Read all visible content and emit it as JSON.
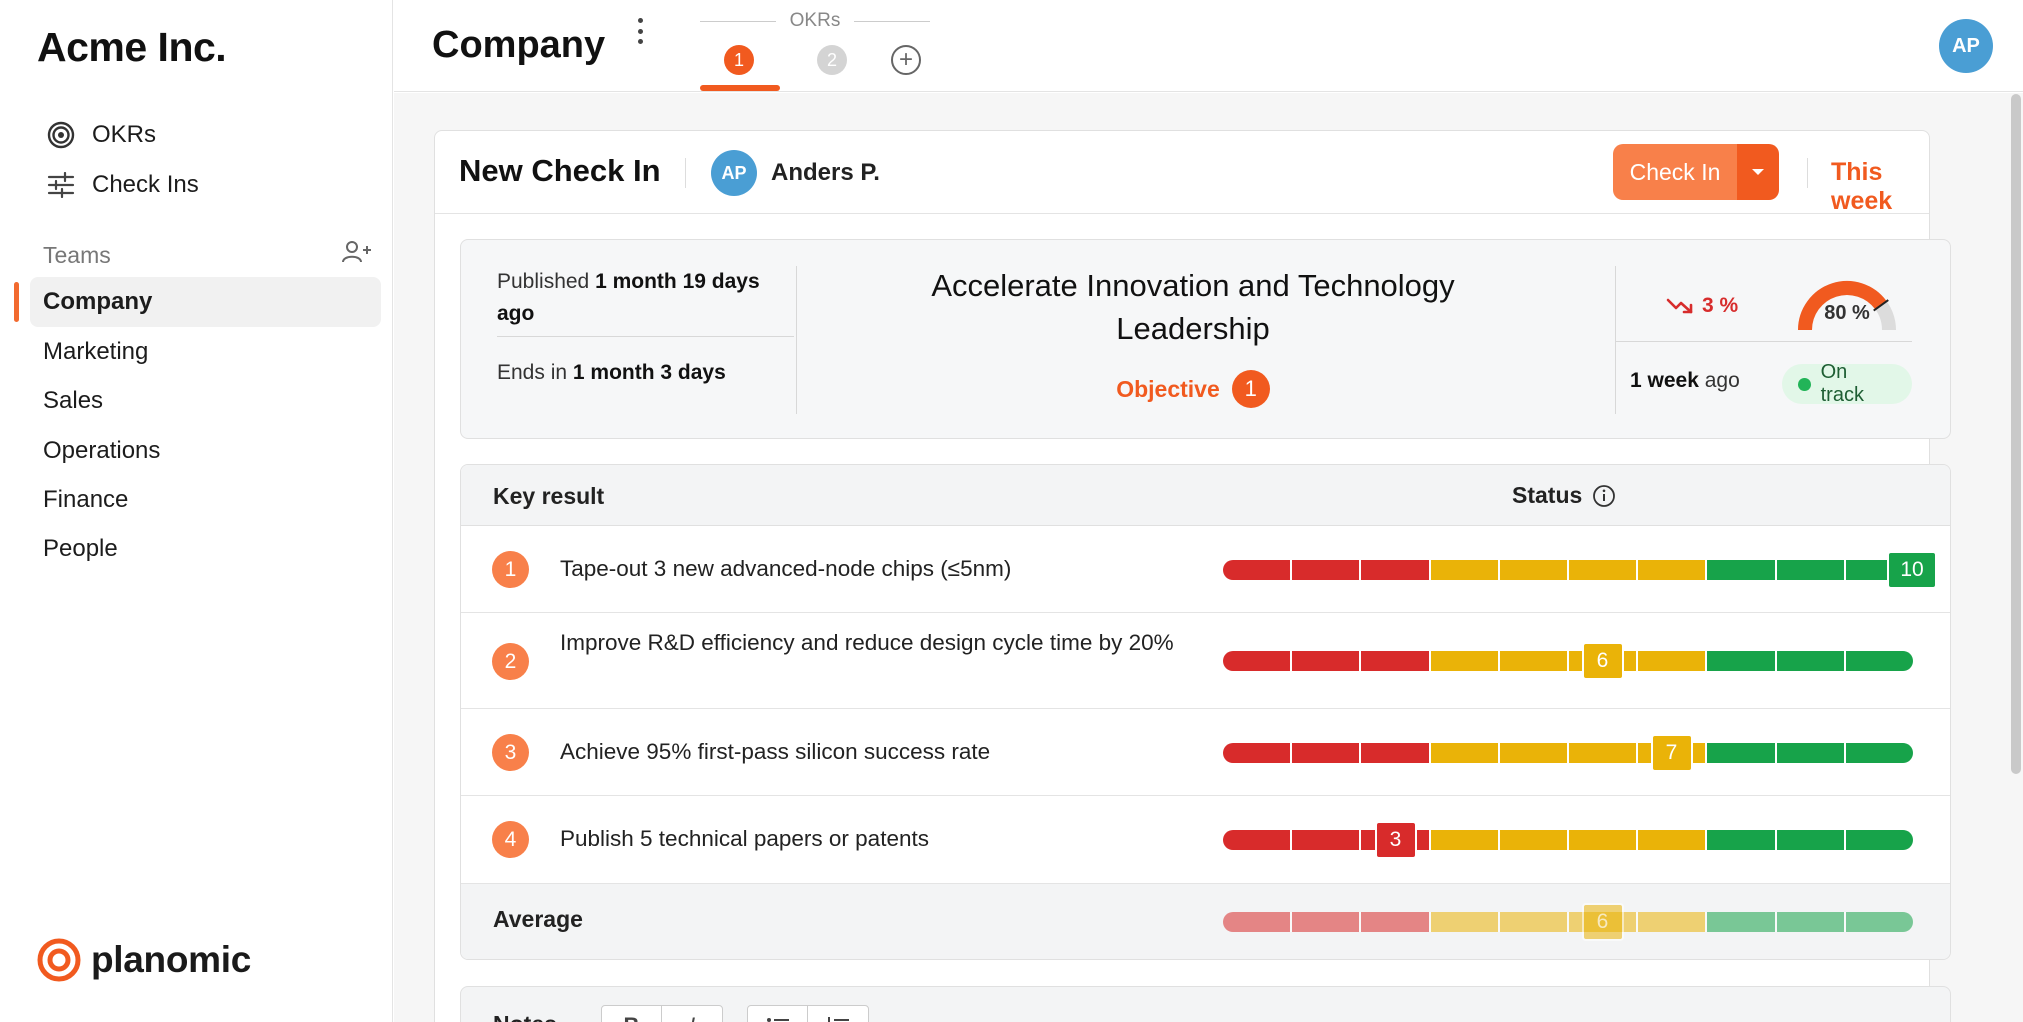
{
  "brand": "Acme Inc.",
  "nav": [
    {
      "label": "OKRs",
      "icon": "target-icon"
    },
    {
      "label": "Check Ins",
      "icon": "sliders-icon"
    }
  ],
  "teams": {
    "heading": "Teams",
    "items": [
      "Company",
      "Marketing",
      "Sales",
      "Operations",
      "Finance",
      "People"
    ],
    "active": "Company"
  },
  "footer": {
    "logo_text": "planomic"
  },
  "topbar": {
    "title": "Company",
    "okrs_label": "OKRs",
    "tabs": [
      "1",
      "2"
    ],
    "add_tab": "+",
    "avatar": "AP"
  },
  "checkin": {
    "title": "New Check In",
    "user_initials": "AP",
    "user_name": "Anders P.",
    "button_label": "Check In",
    "period": "This week"
  },
  "objective": {
    "published_prefix": "Published ",
    "published_value": "1 month 19 days ago",
    "ends_prefix": "Ends in ",
    "ends_value": "1 month 3 days",
    "title": "Accelerate Innovation and Technology Leadership",
    "tag": "Objective",
    "number": "1",
    "trend": "3 %",
    "progress": "80 %",
    "progress_value": 80,
    "last_checkin_value": "1 week",
    "last_checkin_suffix": " ago",
    "status": "On track"
  },
  "key_results": {
    "header_kr": "Key result",
    "header_status": "Status",
    "scale_max": 10,
    "rows": [
      {
        "number": "1",
        "text": "Tape-out 3 new advanced-node chips (≤5nm)",
        "score": 10
      },
      {
        "number": "2",
        "text": "Improve R&D efficiency and reduce design cycle time by 20%",
        "score": 6
      },
      {
        "number": "3",
        "text": "Achieve 95% first-pass silicon success rate",
        "score": 7
      },
      {
        "number": "4",
        "text": "Publish 5 technical papers or patents",
        "score": 3
      }
    ],
    "average_label": "Average",
    "average_score": 6
  },
  "notes": {
    "label": "Notes",
    "bold": "B",
    "italic": "I"
  },
  "colors": {
    "accent": "#f15a1f",
    "accent_light": "#f8804a",
    "red": "#d82b2b",
    "yellow": "#eab308",
    "green": "#17a34a",
    "avatar": "#4a9ed4"
  }
}
